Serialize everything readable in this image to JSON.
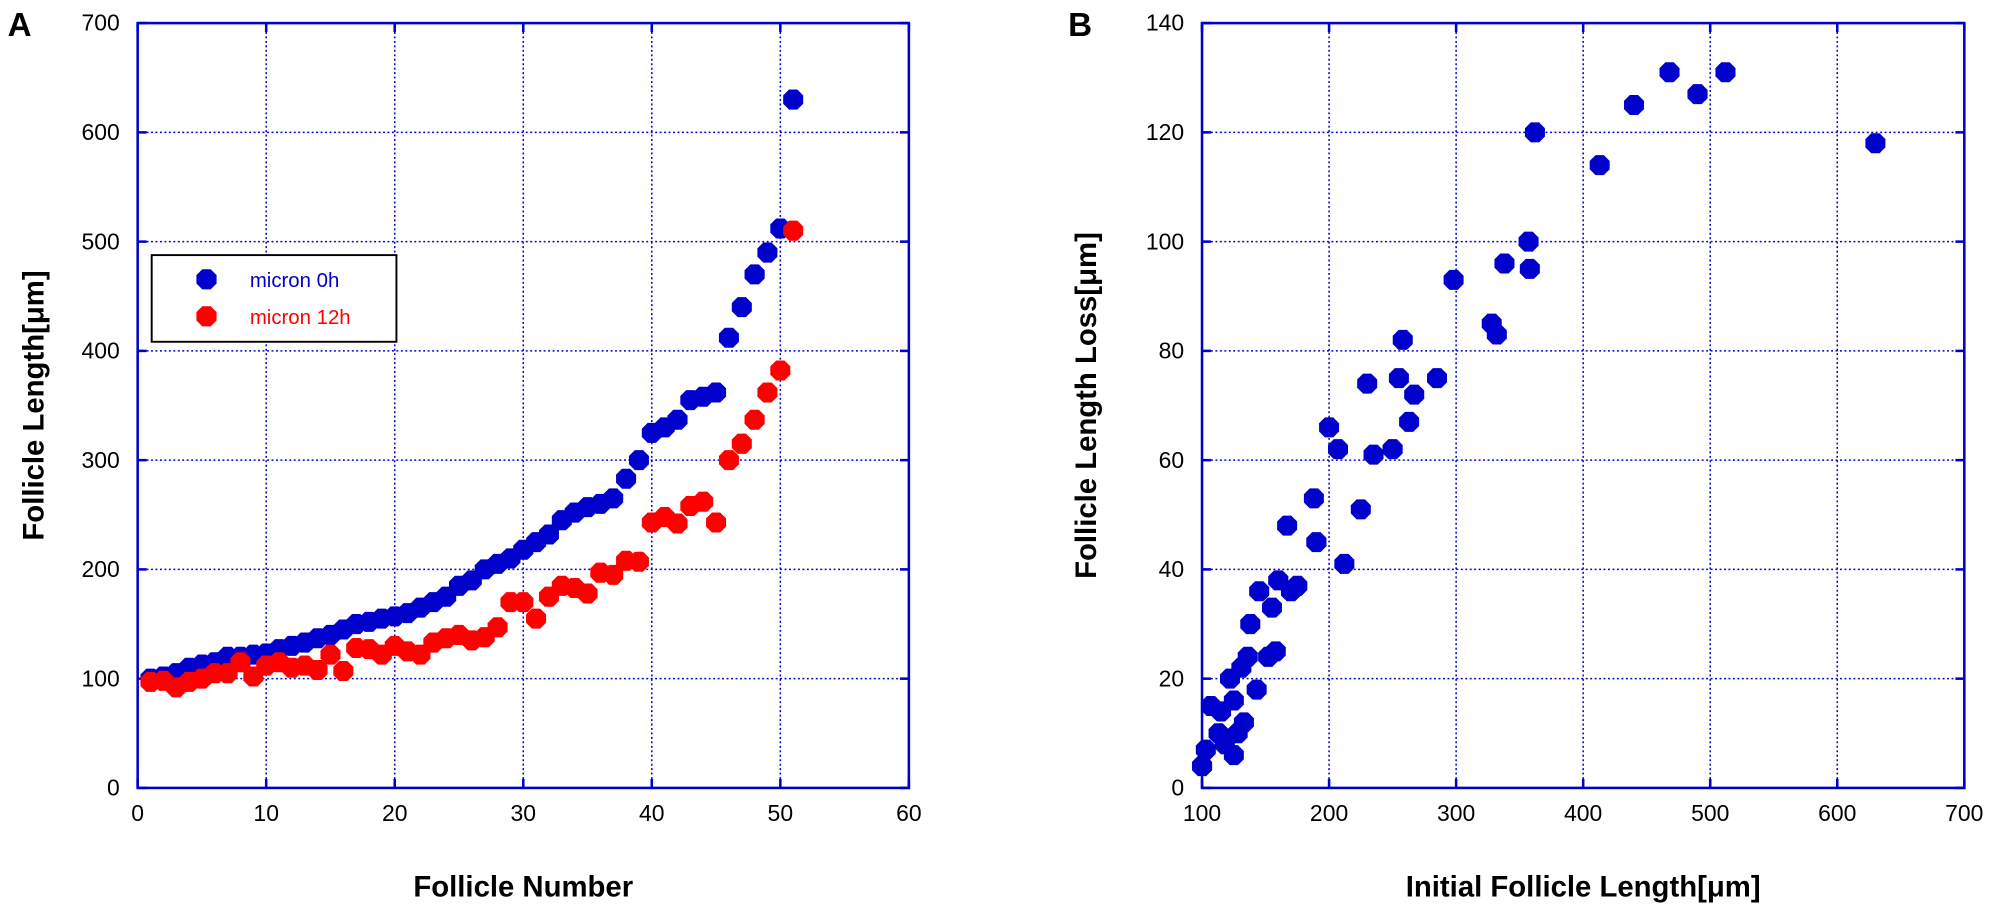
{
  "chart_data": [
    {
      "type": "scatter",
      "panel_label": "A",
      "xlabel": "Follicle Number",
      "ylabel": "Follicle Length[μm]",
      "xlim": [
        0,
        60
      ],
      "ylim": [
        0,
        700
      ],
      "xticks": [
        0,
        10,
        20,
        30,
        40,
        50,
        60
      ],
      "yticks": [
        0,
        100,
        200,
        300,
        400,
        500,
        600,
        700
      ],
      "grid": true,
      "legend_position": "left",
      "series": [
        {
          "name": "micron 0h",
          "color": "#0000cc",
          "x": [
            1,
            2,
            3,
            4,
            5,
            6,
            7,
            8,
            9,
            10,
            11,
            12,
            13,
            14,
            15,
            16,
            17,
            18,
            19,
            20,
            21,
            22,
            23,
            24,
            25,
            26,
            27,
            28,
            29,
            30,
            31,
            32,
            33,
            34,
            35,
            36,
            37,
            38,
            39,
            40,
            41,
            42,
            43,
            44,
            45,
            46,
            47,
            48,
            49,
            50,
            51
          ],
          "y": [
            100,
            102,
            105,
            110,
            113,
            115,
            120,
            120,
            122,
            123,
            127,
            130,
            133,
            137,
            140,
            145,
            150,
            152,
            155,
            157,
            160,
            165,
            170,
            175,
            185,
            190,
            200,
            205,
            210,
            218,
            225,
            232,
            245,
            252,
            257,
            260,
            265,
            283,
            300,
            325,
            330,
            337,
            355,
            358,
            362,
            412,
            440,
            470,
            490,
            512,
            630
          ]
        },
        {
          "name": "micron 12h",
          "color": "#ff0000",
          "x": [
            1,
            2,
            3,
            4,
            5,
            6,
            7,
            8,
            9,
            10,
            11,
            12,
            13,
            14,
            15,
            16,
            17,
            18,
            19,
            20,
            21,
            22,
            23,
            24,
            25,
            26,
            27,
            28,
            29,
            30,
            31,
            32,
            33,
            34,
            35,
            36,
            37,
            38,
            39,
            40,
            41,
            42,
            43,
            44,
            45,
            46,
            47,
            48,
            49,
            50,
            51
          ],
          "y": [
            97,
            98,
            92,
            97,
            100,
            105,
            105,
            115,
            102,
            112,
            115,
            110,
            112,
            108,
            122,
            107,
            128,
            127,
            122,
            130,
            125,
            122,
            133,
            137,
            140,
            135,
            138,
            147,
            170,
            170,
            155,
            175,
            185,
            183,
            178,
            197,
            195,
            208,
            207,
            243,
            248,
            242,
            258,
            262,
            243,
            300,
            315,
            337,
            362,
            382,
            510
          ]
        }
      ]
    },
    {
      "type": "scatter",
      "panel_label": "B",
      "xlabel": "Initial Follicle Length[μm]",
      "ylabel": "Follicle Length Loss[μm]",
      "xlim": [
        100,
        700
      ],
      "ylim": [
        0,
        140
      ],
      "xticks": [
        100,
        200,
        300,
        400,
        500,
        600,
        700
      ],
      "yticks": [
        0,
        20,
        40,
        60,
        80,
        100,
        120,
        140
      ],
      "grid": true,
      "series": [
        {
          "color": "#0000cc",
          "x": [
            100,
            103,
            107,
            113,
            115,
            118,
            122,
            125,
            125,
            128,
            131,
            133,
            136,
            138,
            143,
            145,
            152,
            155,
            158,
            160,
            167,
            170,
            175,
            188,
            190,
            200,
            207,
            212,
            225,
            230,
            235,
            250,
            255,
            258,
            263,
            267,
            285,
            298,
            328,
            332,
            338,
            357,
            358,
            362,
            413,
            440,
            468,
            490,
            512,
            630
          ],
          "y": [
            4,
            7,
            15,
            10,
            14,
            8,
            20,
            6,
            16,
            10,
            22,
            12,
            24,
            30,
            18,
            36,
            24,
            33,
            25,
            38,
            48,
            36,
            37,
            53,
            45,
            66,
            62,
            41,
            51,
            74,
            61,
            62,
            75,
            82,
            67,
            72,
            75,
            93,
            85,
            83,
            96,
            100,
            95,
            120,
            114,
            125,
            131,
            127,
            131,
            118
          ]
        }
      ]
    }
  ]
}
